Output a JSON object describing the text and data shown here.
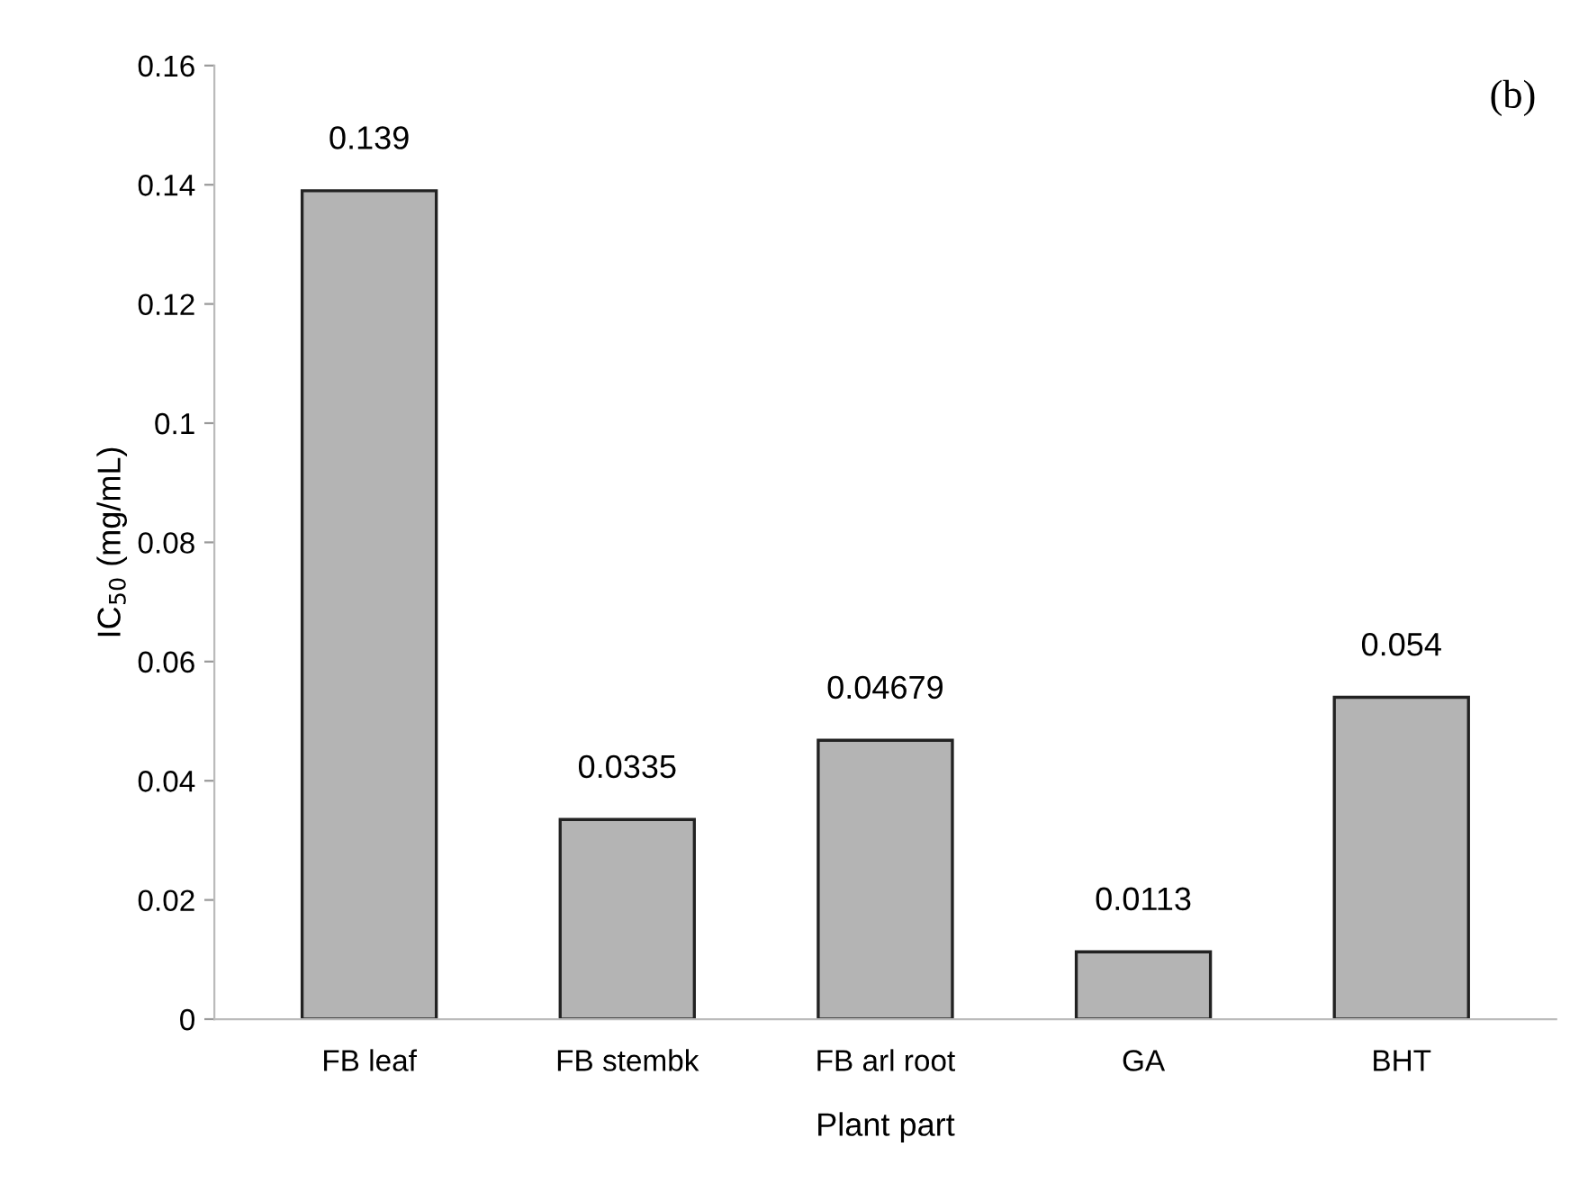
{
  "chart_data": {
    "type": "bar",
    "xlabel": "Plant part",
    "ylabel": "IC$_{50}$ (mg/mL)",
    "categories": [
      "FB leaf",
      "FB stembk",
      "FB arl root",
      "GA",
      "BHT"
    ],
    "values": [
      0.139,
      0.0335,
      0.04679,
      0.0113,
      0.054
    ],
    "color": "#b4b4b4",
    "ylim": [
      0,
      0.16
    ],
    "yticks": [
      0,
      0.02,
      0.04,
      0.06,
      0.08,
      0.1,
      0.12,
      0.14,
      0.16
    ],
    "data_labels": true,
    "grid": false,
    "legend": false,
    "annotations": [
      "(b)"
    ]
  }
}
